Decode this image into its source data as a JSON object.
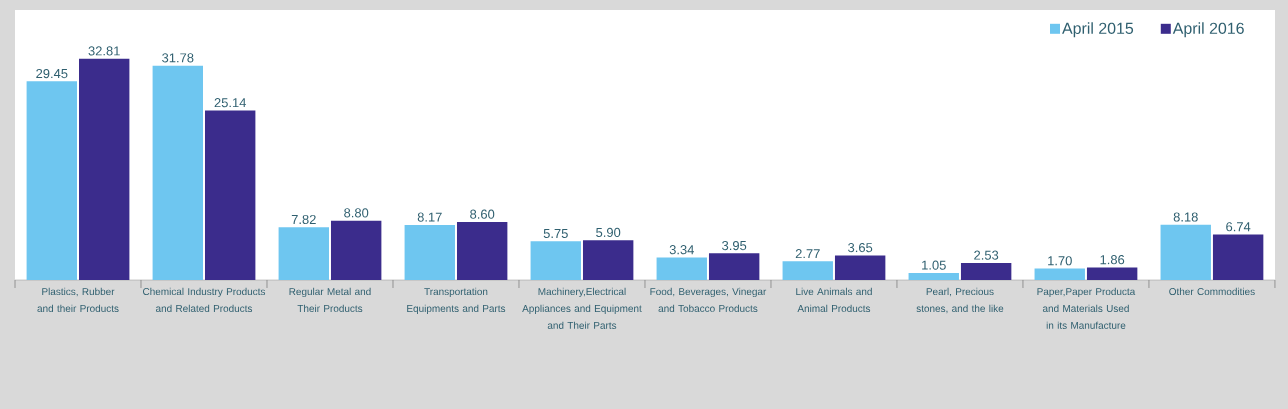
{
  "chart_data": {
    "type": "bar",
    "categories": [
      "Plastics, Rubber and their Products",
      "Chemical Industry Products and Related Products",
      "Regular Metal and Their Products",
      "Transportation Equipments and Parts",
      "Machinery,Electrical Appliances and Equipment and Their Parts",
      "Food, Beverages, Vinegar and Tobacco Products",
      "Live Animals and Animal Products",
      "Pearl, Precious stones, and the like",
      "Paper,Paper Producta and Materials Used in its Manufacture",
      "Other Commodities"
    ],
    "series": [
      {
        "name": "April 2015",
        "color": "#6ec6f0",
        "values": [
          29.45,
          31.78,
          7.82,
          8.17,
          5.75,
          3.34,
          2.77,
          1.05,
          1.7,
          8.18
        ],
        "value_labels": [
          "29.45",
          "31.78",
          "7.82",
          "8.17",
          "5.75",
          "3.34",
          "2.77",
          "1.05",
          "1.70",
          "8.18"
        ]
      },
      {
        "name": "April 2016",
        "color": "#3b2c8c",
        "values": [
          32.81,
          25.14,
          8.8,
          8.6,
          5.9,
          3.95,
          3.65,
          2.53,
          1.86,
          6.74
        ],
        "value_labels": [
          "32.81",
          "25.14",
          "8.80",
          "8.60",
          "5.90",
          "3.95",
          "3.65",
          "2.53",
          "1.86",
          "6.74"
        ]
      }
    ],
    "legend": "top right",
    "grid": false
  }
}
